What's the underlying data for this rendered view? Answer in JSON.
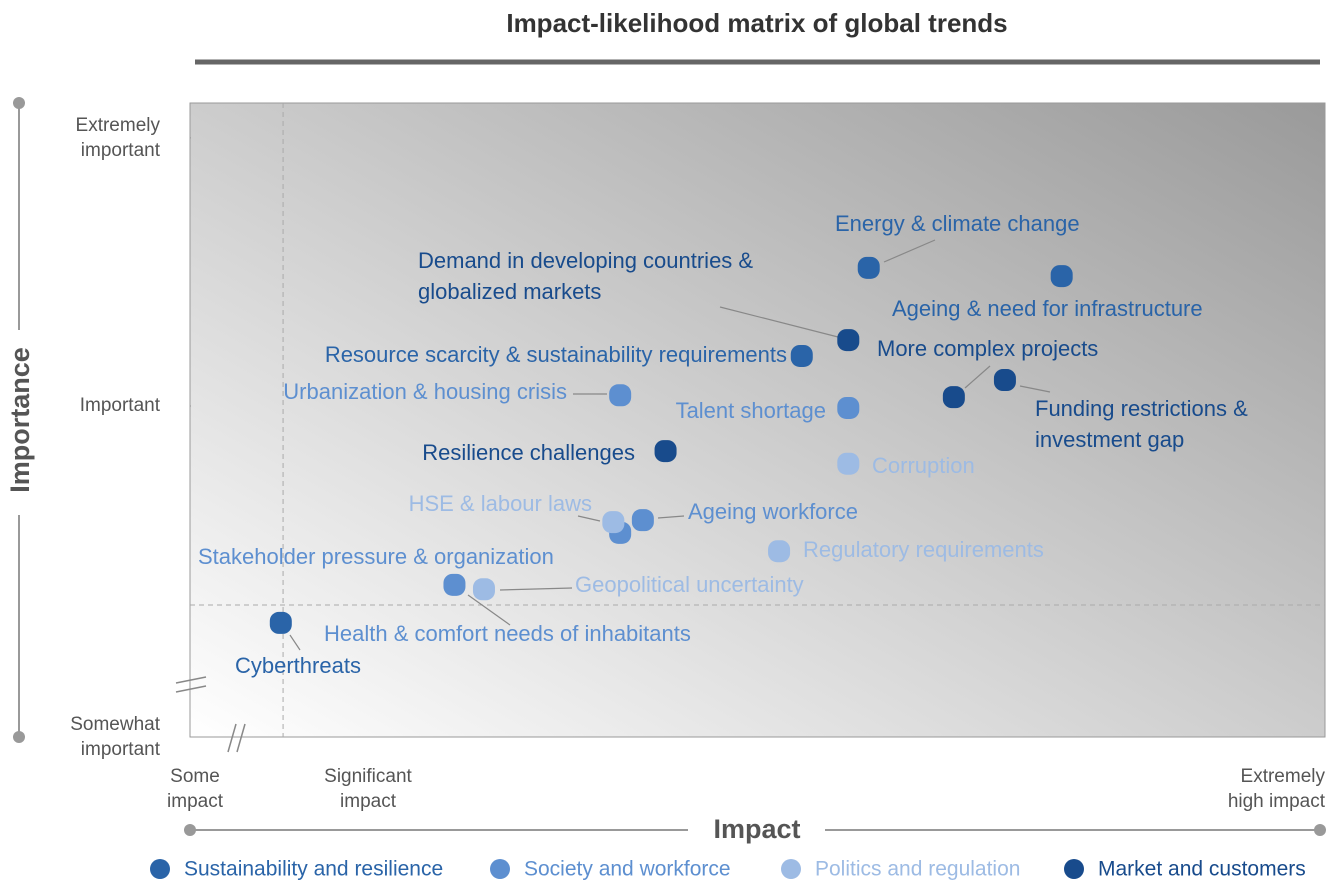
{
  "chart_data": {
    "type": "scatter",
    "title": "Impact-likelihood matrix of global trends",
    "xlabel": "Impact",
    "ylabel": "Importance",
    "xlim": [
      0,
      100
    ],
    "ylim": [
      0,
      100
    ],
    "xticks": [
      {
        "value": 0,
        "label": "Some\nimpact"
      },
      {
        "value": 8.2,
        "label": "Significant\nimpact"
      },
      {
        "value": 100,
        "label": "Extremely\nhigh impact"
      }
    ],
    "yticks": [
      {
        "value": 0,
        "label": "Somewhat\nimportant"
      },
      {
        "value": 52.2,
        "label": "Important"
      },
      {
        "value": 94.5,
        "label": "Extremely\nimportant"
      }
    ],
    "series": [
      {
        "name": "Sustainability and resilience",
        "color": "#2a64a8",
        "labels": [
          "Energy & climate change",
          "Ageing & need for infrastructure",
          "Resource scarcity & sustainability requirements",
          "Cyberthreats"
        ],
        "x": [
          59.8,
          76.8,
          53.9,
          8.0
        ],
        "values": [
          74.0,
          72.7,
          60.1,
          18.0
        ]
      },
      {
        "name": "Society and workforce",
        "color": "#5d8fd0",
        "labels": [
          "Urbanization & housing crisis",
          "Talent shortage",
          "Ageing workforce",
          "Stakeholder pressure & organization",
          "Health & comfort needs of inhabitants"
        ],
        "x": [
          37.9,
          58.0,
          39.9,
          37.9,
          23.3
        ],
        "values": [
          53.9,
          51.9,
          34.2,
          32.2,
          24.0
        ]
      },
      {
        "name": "Politics and regulation",
        "color": "#9dbbe4",
        "labels": [
          "Corruption",
          "HSE & labour laws",
          "Regulatory requirements",
          "Geopolitical uncertainty"
        ],
        "x": [
          58.0,
          37.3,
          51.9,
          25.9
        ],
        "values": [
          43.1,
          33.9,
          29.3,
          23.3
        ]
      },
      {
        "name": "Market and customers",
        "color": "#184b8c",
        "labels": [
          "Demand in developing countries &\nglobalized markets",
          "More complex projects",
          "Funding restrictions &\ninvestment gap",
          "Resilience challenges"
        ],
        "x": [
          58.0,
          67.3,
          71.8,
          41.9
        ],
        "values": [
          62.6,
          53.6,
          56.3,
          45.1
        ]
      }
    ]
  }
}
